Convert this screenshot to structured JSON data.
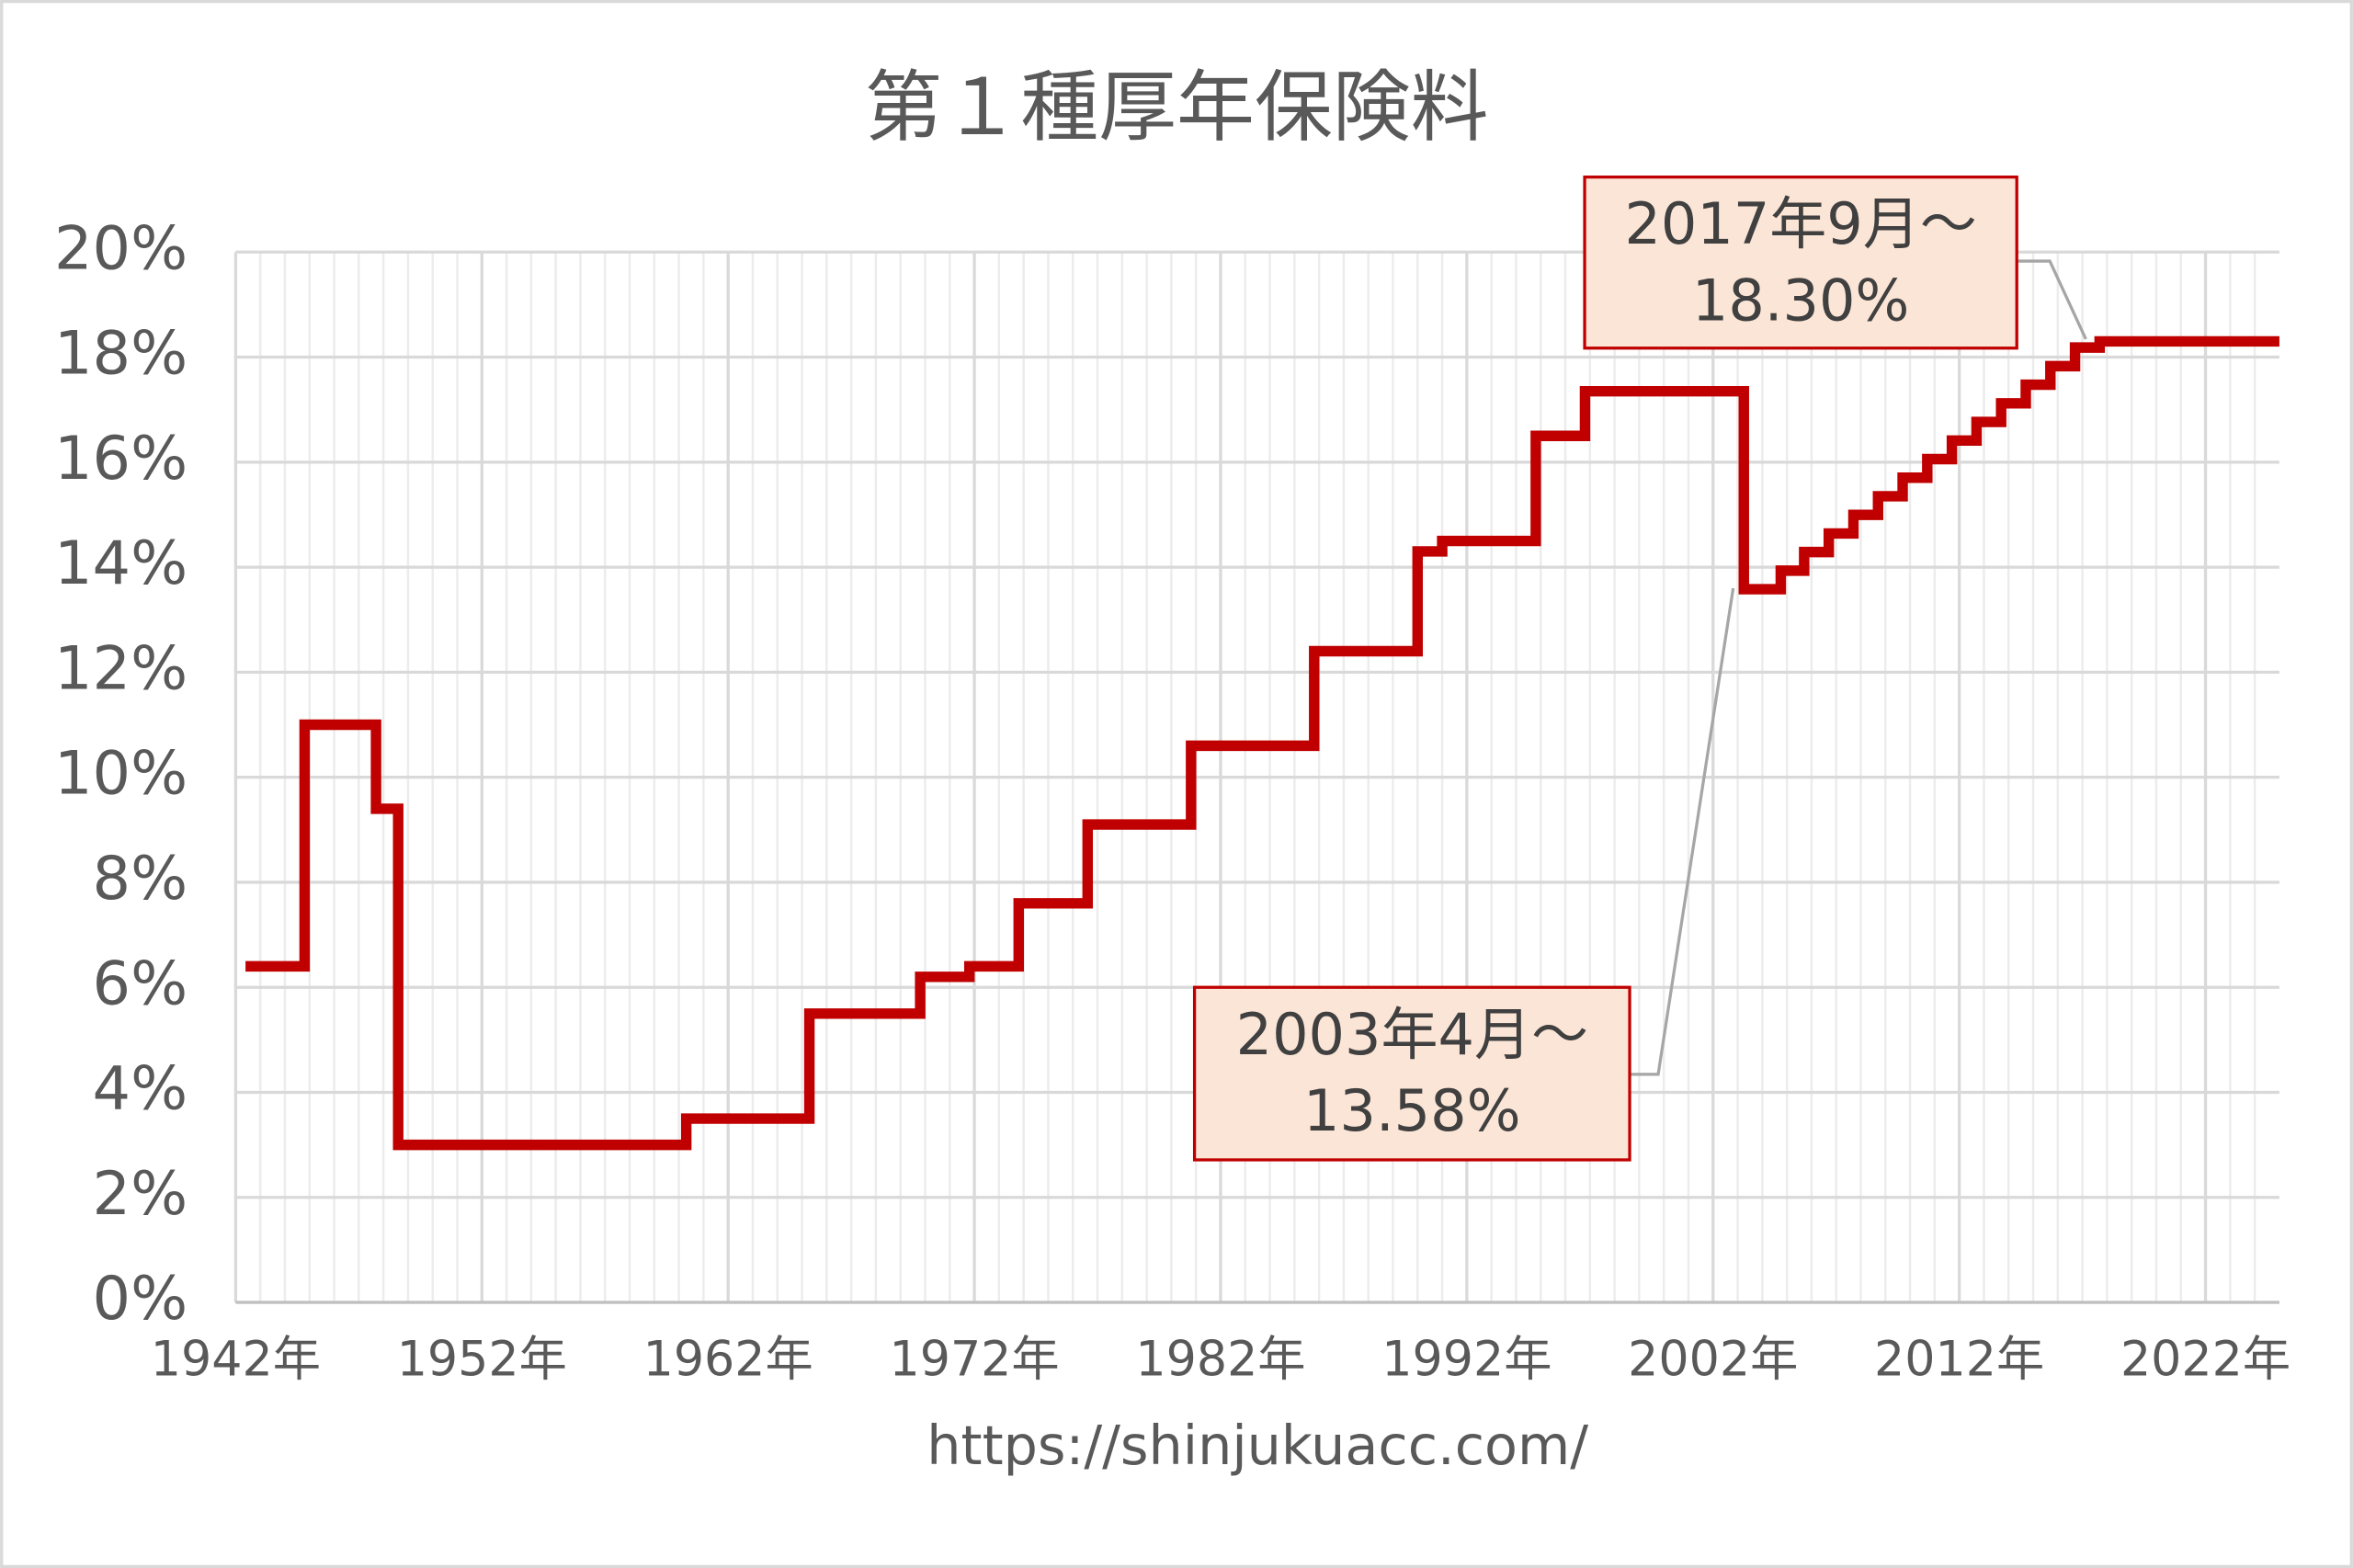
{
  "chart_data": {
    "type": "line",
    "step": "post",
    "title": "第１種厚年保険料",
    "source": "https://shinjukuacc.com/",
    "x": [
      1942.4,
      1944.8,
      1947.7,
      1948.6,
      1960.3,
      1965.3,
      1969.8,
      1971.8,
      1973.8,
      1976.6,
      1980.8,
      1985.8,
      1990.0,
      1991.0,
      1994.8,
      1996.8,
      2003.25,
      2004.75,
      2005.7,
      2006.7,
      2007.7,
      2008.7,
      2009.7,
      2010.7,
      2011.7,
      2012.7,
      2013.7,
      2014.7,
      2015.7,
      2016.7,
      2017.7
    ],
    "values": [
      6.4,
      11.0,
      9.4,
      3.0,
      3.5,
      5.5,
      6.2,
      6.4,
      7.6,
      9.1,
      10.6,
      12.4,
      14.3,
      14.5,
      16.5,
      17.35,
      13.58,
      13.934,
      14.288,
      14.642,
      14.996,
      15.35,
      15.704,
      16.058,
      16.412,
      16.766,
      17.12,
      17.474,
      17.828,
      18.182,
      18.3
    ],
    "color": "#c00000",
    "xlim": [
      1942,
      2025
    ],
    "ylim": [
      0,
      20
    ],
    "xticks": [
      {
        "value": 1942,
        "label": "1942年"
      },
      {
        "value": 1952,
        "label": "1952年"
      },
      {
        "value": 1962,
        "label": "1962年"
      },
      {
        "value": 1972,
        "label": "1972年"
      },
      {
        "value": 1982,
        "label": "1982年"
      },
      {
        "value": 1992,
        "label": "1992年"
      },
      {
        "value": 2002,
        "label": "2002年"
      },
      {
        "value": 2012,
        "label": "2012年"
      },
      {
        "value": 2022,
        "label": "2022年"
      }
    ],
    "xminorticks": [
      1943,
      1944,
      1945,
      1946,
      1947,
      1948,
      1949,
      1950,
      1951,
      1953,
      1954,
      1955,
      1956,
      1957,
      1958,
      1959,
      1960,
      1961,
      1963,
      1964,
      1965,
      1966,
      1967,
      1968,
      1969,
      1970,
      1971,
      1973,
      1974,
      1975,
      1976,
      1977,
      1978,
      1979,
      1980,
      1981,
      1983,
      1984,
      1985,
      1986,
      1987,
      1988,
      1989,
      1990,
      1991,
      1993,
      1994,
      1995,
      1996,
      1997,
      1998,
      1999,
      2000,
      2001,
      2003,
      2004,
      2005,
      2006,
      2007,
      2008,
      2009,
      2010,
      2011,
      2013,
      2014,
      2015,
      2016,
      2017,
      2018,
      2019,
      2020,
      2021,
      2023,
      2024
    ],
    "yticks": [
      {
        "value": 0,
        "label": "0%"
      },
      {
        "value": 2,
        "label": "2%"
      },
      {
        "value": 4,
        "label": "4%"
      },
      {
        "value": 6,
        "label": "6%"
      },
      {
        "value": 8,
        "label": "8%"
      },
      {
        "value": 10,
        "label": "10%"
      },
      {
        "value": 12,
        "label": "12%"
      },
      {
        "value": 14,
        "label": "14%"
      },
      {
        "value": 16,
        "label": "16%"
      },
      {
        "value": 18,
        "label": "18%"
      },
      {
        "value": 20,
        "label": "20%"
      }
    ],
    "grid": true,
    "annotations": [
      {
        "lines": [
          "2017年9月～",
          "18.30%"
        ]
      },
      {
        "lines": [
          "2003年4月～",
          "13.58%"
        ]
      }
    ]
  }
}
